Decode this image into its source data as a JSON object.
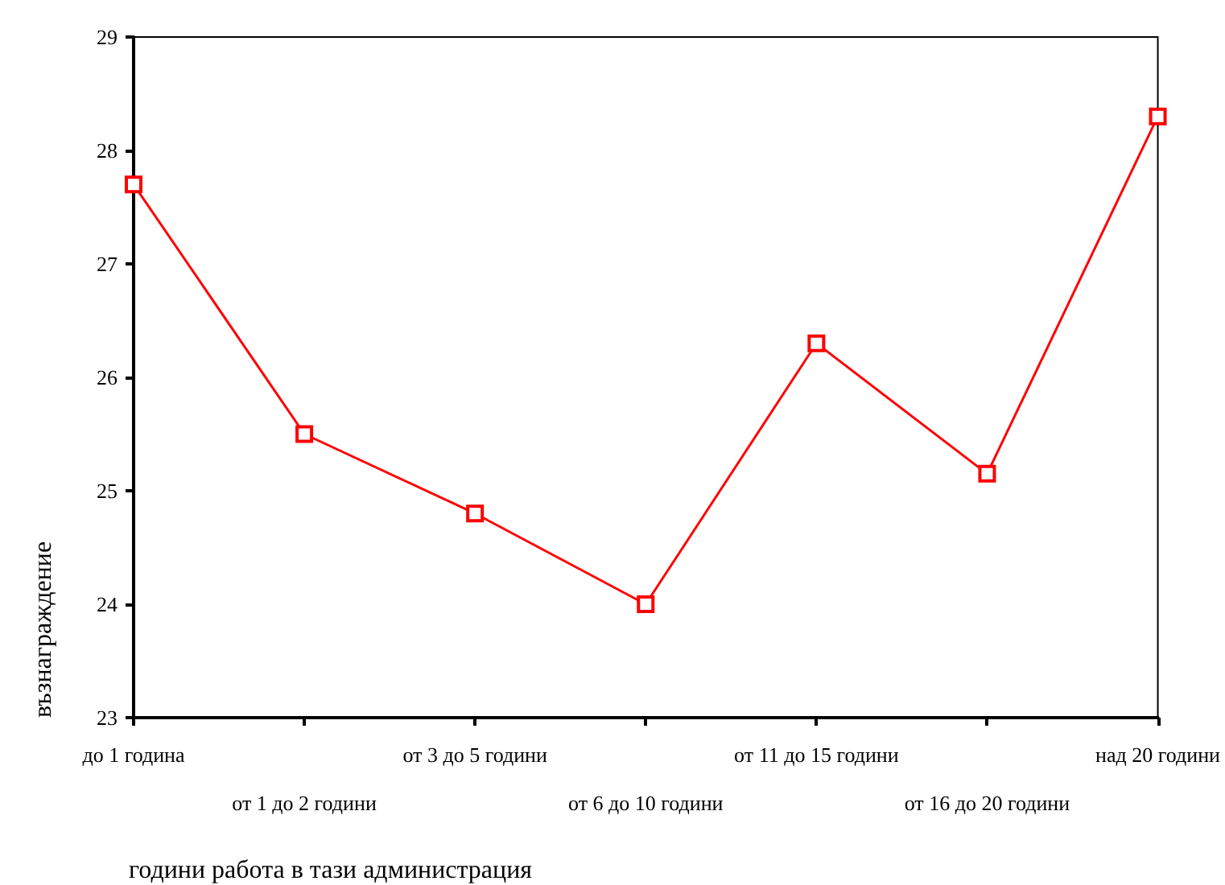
{
  "chart_data": {
    "type": "line",
    "xlabel": "години работа в тази администрация",
    "ylabel": "възнаграждение",
    "categories": [
      "до 1 година",
      "от 1 до 2 години",
      "от 3 до 5 години",
      "от 6 до 10 години",
      "от 11 до 15 години",
      "от 16 до 20 години",
      "над 20 години"
    ],
    "series": [
      {
        "color": "#ff0000",
        "values": [
          27.7,
          25.5,
          24.8,
          24.0,
          26.3,
          25.15,
          28.3
        ]
      }
    ],
    "ylim": [
      23,
      29
    ],
    "yticks": [
      23,
      24,
      25,
      26,
      27,
      28,
      29
    ],
    "marker": "square",
    "line_style": "solid"
  }
}
